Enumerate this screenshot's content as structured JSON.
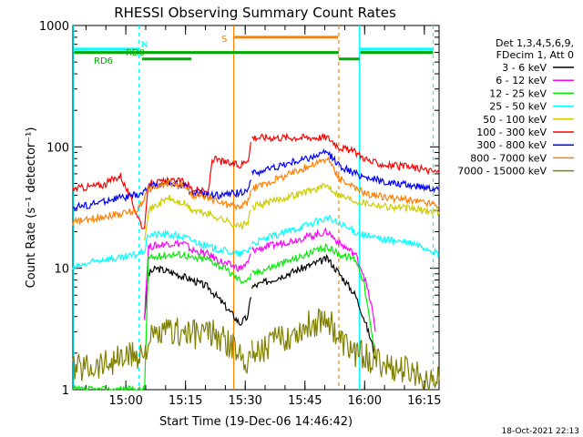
{
  "chart_data": {
    "type": "line",
    "title": "RHESSI Observing Summary Count Rates",
    "xlabel": "Start Time (19-Dec-06 14:46:42)",
    "ylabel": "Count Rate (s⁻¹ detector⁻¹)",
    "footer": "18-Oct-2021 22:13",
    "x_ticks": [
      "15:00",
      "15:15",
      "15:30",
      "15:45",
      "16:00",
      "16:15"
    ],
    "y_ticks": [
      "1",
      "10",
      "100",
      "1000"
    ],
    "y_scale": "log",
    "ylim": [
      1,
      1000
    ],
    "xlim_minutes": [
      0,
      92
    ],
    "legend_header": [
      "Det 1,3,4,5,6,9,",
      "FDecim 1, Att 0"
    ],
    "series": [
      {
        "name": "3 - 6 keV",
        "color": "#000000",
        "points": [
          [
            18,
            4
          ],
          [
            19,
            9
          ],
          [
            21,
            10
          ],
          [
            26,
            9
          ],
          [
            30,
            8
          ],
          [
            34,
            7
          ],
          [
            38,
            5
          ],
          [
            42,
            3.5
          ],
          [
            44,
            4
          ],
          [
            45,
            7
          ],
          [
            64,
            12
          ],
          [
            67,
            9
          ],
          [
            71,
            6
          ],
          [
            73,
            4
          ],
          [
            75,
            2.5
          ],
          [
            76,
            1.8
          ]
        ]
      },
      {
        "name": "6 - 12 keV",
        "color": "#ff00ff",
        "points": [
          [
            18,
            4
          ],
          [
            19,
            15
          ],
          [
            24,
            16
          ],
          [
            28,
            16
          ],
          [
            30,
            14
          ],
          [
            34,
            13
          ],
          [
            38,
            11
          ],
          [
            42,
            10
          ],
          [
            44,
            11
          ],
          [
            45,
            14
          ],
          [
            64,
            20
          ],
          [
            67,
            16
          ],
          [
            71,
            13
          ],
          [
            73,
            9
          ],
          [
            75,
            5
          ],
          [
            76,
            3
          ]
        ]
      },
      {
        "name": "12 - 25 keV",
        "color": "#00ee00",
        "points": [
          [
            0,
            1
          ],
          [
            12,
            1
          ],
          [
            18,
            1
          ],
          [
            19,
            12
          ],
          [
            24,
            13
          ],
          [
            28,
            13
          ],
          [
            30,
            12
          ],
          [
            34,
            12
          ],
          [
            38,
            10
          ],
          [
            42,
            8
          ],
          [
            44,
            8
          ],
          [
            45,
            9
          ],
          [
            64,
            15
          ],
          [
            67,
            13
          ],
          [
            71,
            12
          ],
          [
            73,
            8
          ],
          [
            75,
            3
          ],
          [
            76,
            2
          ]
        ]
      },
      {
        "name": "25 - 50 keV",
        "color": "#00ffff",
        "points": [
          [
            0,
            10
          ],
          [
            4,
            11
          ],
          [
            8,
            12
          ],
          [
            12,
            12
          ],
          [
            16,
            13
          ],
          [
            18,
            14
          ],
          [
            19,
            19
          ],
          [
            24,
            19
          ],
          [
            28,
            18
          ],
          [
            30,
            17
          ],
          [
            34,
            15
          ],
          [
            38,
            14
          ],
          [
            42,
            13
          ],
          [
            44,
            14
          ],
          [
            45,
            16
          ],
          [
            64,
            26
          ],
          [
            67,
            23
          ],
          [
            71,
            20
          ],
          [
            75,
            18
          ],
          [
            80,
            17
          ],
          [
            85,
            16
          ],
          [
            88,
            15
          ],
          [
            90,
            14
          ],
          [
            92,
            13
          ]
        ]
      },
      {
        "name": "50 - 100 keV",
        "color": "#cccc00",
        "points": [
          [
            18,
            18
          ],
          [
            19,
            30
          ],
          [
            24,
            38
          ],
          [
            26,
            35
          ],
          [
            28,
            34
          ],
          [
            30,
            30
          ],
          [
            34,
            28
          ],
          [
            38,
            25
          ],
          [
            42,
            22
          ],
          [
            44,
            24
          ],
          [
            45,
            32
          ],
          [
            64,
            48
          ],
          [
            67,
            40
          ],
          [
            71,
            36
          ],
          [
            75,
            34
          ],
          [
            80,
            32
          ],
          [
            85,
            31
          ],
          [
            88,
            30
          ],
          [
            92,
            29
          ]
        ]
      },
      {
        "name": "100 - 300 keV",
        "color": "#ff0000",
        "points": [
          [
            0,
            45
          ],
          [
            4,
            47
          ],
          [
            8,
            49
          ],
          [
            10,
            54
          ],
          [
            12,
            58
          ],
          [
            18,
            20
          ],
          [
            19,
            50
          ],
          [
            24,
            52
          ],
          [
            28,
            52
          ],
          [
            30,
            45
          ],
          [
            34,
            42
          ],
          [
            35,
            80
          ],
          [
            38,
            75
          ],
          [
            42,
            70
          ],
          [
            44,
            80
          ],
          [
            45,
            120
          ],
          [
            64,
            120
          ],
          [
            67,
            100
          ],
          [
            71,
            90
          ],
          [
            75,
            75
          ],
          [
            80,
            70
          ],
          [
            85,
            68
          ],
          [
            88,
            65
          ],
          [
            92,
            62
          ]
        ]
      },
      {
        "name": "300 - 800 keV",
        "color": "#0000ff",
        "points": [
          [
            0,
            32
          ],
          [
            4,
            33
          ],
          [
            8,
            36
          ],
          [
            12,
            38
          ],
          [
            16,
            40
          ],
          [
            18,
            42
          ],
          [
            19,
            48
          ],
          [
            24,
            50
          ],
          [
            28,
            48
          ],
          [
            30,
            42
          ],
          [
            34,
            40
          ],
          [
            38,
            40
          ],
          [
            42,
            42
          ],
          [
            44,
            45
          ],
          [
            45,
            60
          ],
          [
            64,
            90
          ],
          [
            67,
            70
          ],
          [
            71,
            60
          ],
          [
            75,
            55
          ],
          [
            80,
            50
          ],
          [
            85,
            48
          ],
          [
            88,
            47
          ],
          [
            92,
            45
          ]
        ]
      },
      {
        "name": "800 - 7000 keV",
        "color": "#ff8000",
        "points": [
          [
            0,
            24
          ],
          [
            4,
            25
          ],
          [
            8,
            27
          ],
          [
            12,
            28
          ],
          [
            16,
            30
          ],
          [
            18,
            38
          ],
          [
            19,
            45
          ],
          [
            24,
            50
          ],
          [
            28,
            48
          ],
          [
            30,
            40
          ],
          [
            34,
            38
          ],
          [
            38,
            34
          ],
          [
            42,
            32
          ],
          [
            44,
            35
          ],
          [
            45,
            45
          ],
          [
            64,
            80
          ],
          [
            67,
            55
          ],
          [
            71,
            45
          ],
          [
            75,
            40
          ],
          [
            80,
            38
          ],
          [
            85,
            36
          ],
          [
            88,
            35
          ],
          [
            92,
            33
          ]
        ]
      },
      {
        "name": "7000 - 15000 keV",
        "color": "#808000",
        "points": [
          [
            0,
            1.5
          ],
          [
            6,
            1.6
          ],
          [
            12,
            1.8
          ],
          [
            18,
            2
          ],
          [
            19,
            2.5
          ],
          [
            24,
            3
          ],
          [
            28,
            3
          ],
          [
            30,
            2.8
          ],
          [
            34,
            3
          ],
          [
            38,
            2.5
          ],
          [
            42,
            2
          ],
          [
            44,
            1.8
          ],
          [
            45,
            2
          ],
          [
            64,
            4
          ],
          [
            67,
            2.5
          ],
          [
            71,
            2
          ],
          [
            75,
            1.8
          ],
          [
            80,
            1.5
          ],
          [
            85,
            1.4
          ],
          [
            88,
            1.3
          ],
          [
            92,
            1.2
          ]
        ]
      }
    ],
    "flags": [
      {
        "label": "N",
        "color": "#00ffff",
        "y": 640
      },
      {
        "label": "RD0",
        "color": "#00aa00",
        "y": 600
      },
      {
        "label": "RD6",
        "color": "#00aa00",
        "y": 530
      },
      {
        "label": "S",
        "color": "#ff8000",
        "y": 800
      }
    ]
  }
}
